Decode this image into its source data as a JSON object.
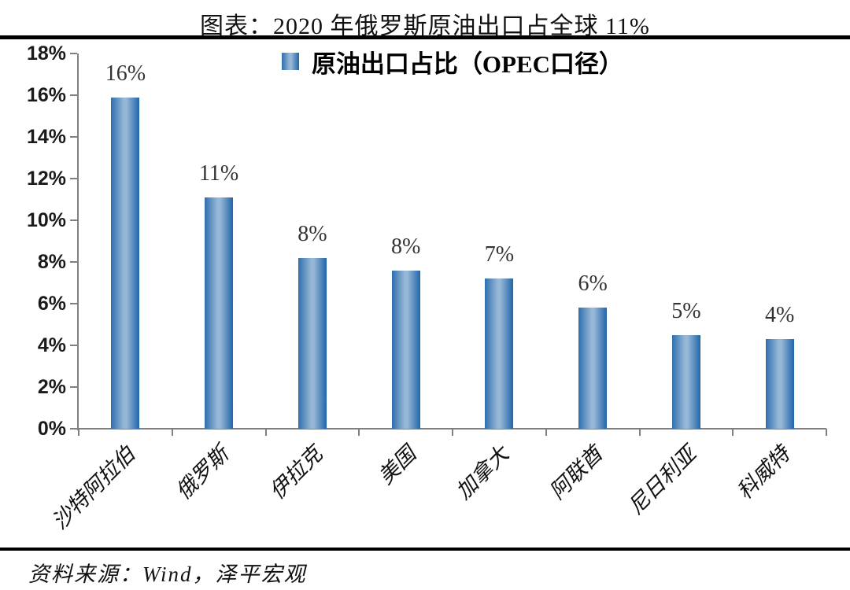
{
  "header": {
    "title": "图表：2020 年俄罗斯原油出口占全球 11%"
  },
  "legend": {
    "label": "原油出口占比（OPEC口径）"
  },
  "footer": {
    "source": "资料来源：Wind，泽平宏观"
  },
  "colors": {
    "bar_edge_left": "#2e6fae",
    "bar_mid": "#96b7d6",
    "bar_edge_right": "#2165aa",
    "axis": "#808080",
    "rule": "#000000",
    "value_label": "#333333"
  },
  "chart_data": {
    "type": "bar",
    "title": "图表：2020 年俄罗斯原油出口占全球 11%",
    "legend_entries": [
      "原油出口占比（OPEC口径）"
    ],
    "legend_position": "top-center",
    "categories": [
      "沙特阿拉伯",
      "俄罗斯",
      "伊拉克",
      "美国",
      "加拿大",
      "阿联酋",
      "尼日利亚",
      "科威特"
    ],
    "category_ids": [
      "saudi-arabia",
      "russia",
      "iraq",
      "usa",
      "canada",
      "uae",
      "nigeria",
      "kuwait"
    ],
    "values": [
      15.9,
      11.1,
      8.2,
      7.6,
      7.2,
      5.8,
      4.5,
      4.3
    ],
    "data_labels": [
      "16%",
      "11%",
      "8%",
      "8%",
      "7%",
      "6%",
      "5%",
      "4%"
    ],
    "xlabel": "",
    "ylabel": "",
    "ylim": [
      0,
      18
    ],
    "ytick_step": 2,
    "ytick_labels": [
      "0%",
      "2%",
      "4%",
      "6%",
      "8%",
      "10%",
      "12%",
      "14%",
      "16%",
      "18%"
    ],
    "grid": false,
    "source_note": "资料来源：Wind，泽平宏观"
  }
}
